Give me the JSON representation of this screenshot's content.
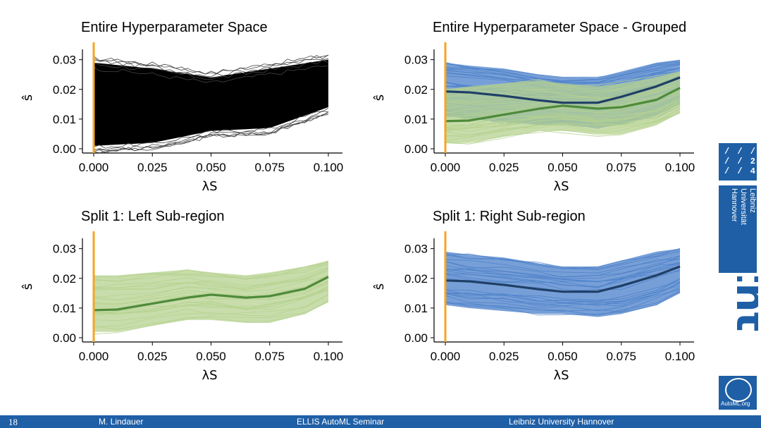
{
  "chart_data": [
    {
      "type": "line",
      "title": "Entire Hyperparameter Space",
      "xlabel": "λS",
      "ylabel": "ŝ",
      "xlim": [
        0.0,
        0.1
      ],
      "ylim": [
        0.0,
        0.033
      ],
      "x_ticks": [
        "0.000",
        "0.025",
        "0.050",
        "0.075",
        "0.100"
      ],
      "y_ticks": [
        "0.00",
        "0.01",
        "0.02",
        "0.03"
      ],
      "band_color": "#000000",
      "vline_x": 0.0,
      "vline_color": "#f5a623",
      "series": [
        {
          "x": [
            0.0,
            0.025,
            0.05,
            0.075,
            0.1
          ],
          "values": [
            0.029,
            0.027,
            0.024,
            0.027,
            0.03
          ]
        },
        {
          "x": [
            0.0,
            0.025,
            0.05,
            0.075,
            0.1
          ],
          "values": [
            0.001,
            0.002,
            0.006,
            0.007,
            0.014
          ]
        }
      ]
    },
    {
      "type": "line",
      "title": "Entire Hyperparameter Space - Grouped",
      "xlabel": "λS",
      "ylabel": "ŝ",
      "xlim": [
        0.0,
        0.1
      ],
      "ylim": [
        0.0,
        0.033
      ],
      "x_ticks": [
        "0.000",
        "0.025",
        "0.050",
        "0.075",
        "0.100"
      ],
      "y_ticks": [
        "0.00",
        "0.01",
        "0.02",
        "0.03"
      ],
      "vline_x": 0.0,
      "vline_color": "#f5a623",
      "series": [
        {
          "color": "#4a7fc9",
          "mean_color": "#1f3f66",
          "x": [
            0.0,
            0.01,
            0.025,
            0.04,
            0.05,
            0.065,
            0.075,
            0.09,
            0.1
          ],
          "mean": [
            0.0193,
            0.019,
            0.0178,
            0.0163,
            0.0155,
            0.0155,
            0.0175,
            0.021,
            0.024
          ],
          "upper": [
            0.029,
            0.028,
            0.027,
            0.025,
            0.024,
            0.024,
            0.026,
            0.029,
            0.03
          ],
          "lower": [
            0.011,
            0.01,
            0.009,
            0.008,
            0.008,
            0.007,
            0.008,
            0.011,
            0.015
          ]
        },
        {
          "color": "#b5d18f",
          "mean_color": "#4e8a3a",
          "x": [
            0.0,
            0.01,
            0.025,
            0.04,
            0.05,
            0.065,
            0.075,
            0.09,
            0.1
          ],
          "mean": [
            0.0093,
            0.0095,
            0.0115,
            0.0135,
            0.0145,
            0.0135,
            0.014,
            0.0165,
            0.0205
          ],
          "upper": [
            0.02,
            0.021,
            0.022,
            0.023,
            0.022,
            0.021,
            0.022,
            0.024,
            0.026
          ],
          "lower": [
            0.002,
            0.002,
            0.004,
            0.006,
            0.006,
            0.005,
            0.005,
            0.008,
            0.012
          ]
        }
      ]
    },
    {
      "type": "line",
      "title": "Split 1: Left Sub-region",
      "xlabel": "λS",
      "ylabel": "ŝ",
      "xlim": [
        0.0,
        0.1
      ],
      "ylim": [
        0.0,
        0.033
      ],
      "x_ticks": [
        "0.000",
        "0.025",
        "0.050",
        "0.075",
        "0.100"
      ],
      "y_ticks": [
        "0.00",
        "0.01",
        "0.02",
        "0.03"
      ],
      "vline_x": 0.0,
      "vline_color": "#f5a623",
      "series": [
        {
          "color": "#b5d18f",
          "mean_color": "#4e8a3a",
          "x": [
            0.0,
            0.01,
            0.025,
            0.04,
            0.05,
            0.065,
            0.075,
            0.09,
            0.1
          ],
          "mean": [
            0.0093,
            0.0095,
            0.0115,
            0.0135,
            0.0145,
            0.0135,
            0.014,
            0.0165,
            0.0205
          ],
          "upper": [
            0.021,
            0.021,
            0.022,
            0.023,
            0.022,
            0.021,
            0.022,
            0.024,
            0.026
          ],
          "lower": [
            0.002,
            0.002,
            0.004,
            0.006,
            0.006,
            0.005,
            0.005,
            0.008,
            0.012
          ]
        }
      ]
    },
    {
      "type": "line",
      "title": "Split 1: Right Sub-region",
      "xlabel": "λS",
      "ylabel": "ŝ",
      "xlim": [
        0.0,
        0.1
      ],
      "ylim": [
        0.0,
        0.033
      ],
      "x_ticks": [
        "0.000",
        "0.025",
        "0.050",
        "0.075",
        "0.100"
      ],
      "y_ticks": [
        "0.00",
        "0.01",
        "0.02",
        "0.03"
      ],
      "vline_x": 0.0,
      "vline_color": "#f5a623",
      "series": [
        {
          "color": "#4a7fc9",
          "mean_color": "#1f3f66",
          "x": [
            0.0,
            0.01,
            0.025,
            0.04,
            0.05,
            0.065,
            0.075,
            0.09,
            0.1
          ],
          "mean": [
            0.0193,
            0.019,
            0.0178,
            0.0163,
            0.0155,
            0.0155,
            0.0175,
            0.021,
            0.024
          ],
          "upper": [
            0.029,
            0.028,
            0.027,
            0.025,
            0.024,
            0.024,
            0.026,
            0.029,
            0.03
          ],
          "lower": [
            0.011,
            0.01,
            0.009,
            0.008,
            0.008,
            0.007,
            0.008,
            0.011,
            0.015
          ]
        }
      ]
    }
  ],
  "footer": {
    "slide_number": "18",
    "author": "M. Lindauer",
    "event": "ELLIS AutoML Seminar",
    "organization": "Leibniz University Hannover"
  },
  "logos": {
    "luh_mark": "luh-logo",
    "luh_name_lines": [
      "Leibniz",
      "Universität",
      "Hannover"
    ],
    "tnt_text": "tnt",
    "automl_text": "AutoML.org"
  }
}
